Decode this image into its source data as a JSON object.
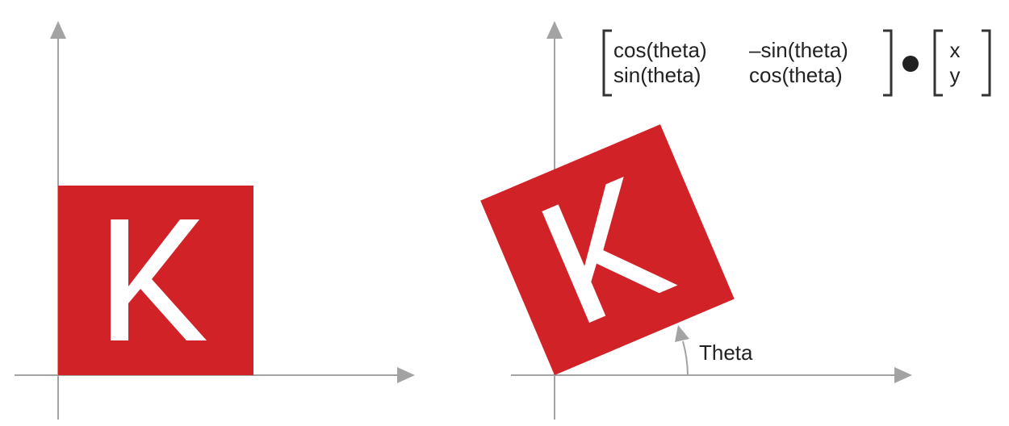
{
  "colors": {
    "axis": "#a3a3a3",
    "keras_red": "#d12227",
    "glyph": "#ffffff",
    "text": "#222222"
  },
  "logo": {
    "letter": "K",
    "icon": "keras-logo-icon"
  },
  "matrix": {
    "rows": [
      [
        "cos(theta)",
        "–sin(theta)"
      ],
      [
        "sin(theta)",
        "cos(theta)"
      ]
    ],
    "operator_icon": "dot-product-icon",
    "vector": [
      "x",
      "y"
    ]
  },
  "angle_label": "Theta"
}
